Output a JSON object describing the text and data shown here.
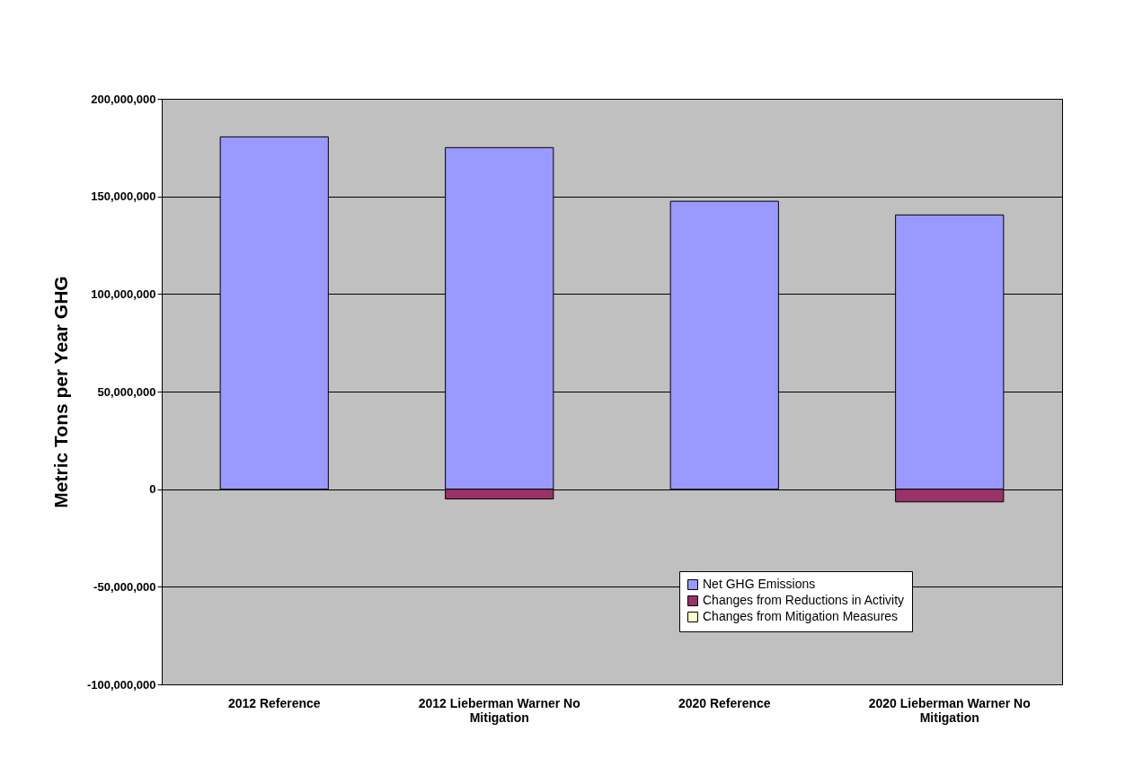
{
  "chart_data": {
    "type": "bar",
    "stacked": true,
    "ylabel": "Metric Tons per Year GHG",
    "categories": [
      "2012 Reference",
      "2012 Lieberman Warner No Mitigation",
      "2020 Reference",
      "2020 Lieberman Warner No Mitigation"
    ],
    "series": [
      {
        "name": "Net GHG Emissions",
        "color": "#9999ff",
        "values": [
          180500000,
          175000000,
          147500000,
          140500000
        ]
      },
      {
        "name": "Changes from Reductions in Activity",
        "color": "#993366",
        "values": [
          0,
          -5000000,
          0,
          -6500000
        ]
      },
      {
        "name": "Changes from Mitigation Measures",
        "color": "#ffffcc",
        "values": [
          0,
          0,
          0,
          0
        ]
      }
    ],
    "ylim": [
      -100000000,
      200000000
    ],
    "yticks": [
      {
        "value": -100000000,
        "label": "-100,000,000"
      },
      {
        "value": -50000000,
        "label": "-50,000,000"
      },
      0,
      {
        "value": 50000000,
        "label": "50,000,000"
      },
      {
        "value": 100000000,
        "label": "100,000,000"
      },
      {
        "value": 150000000,
        "label": "150,000,000"
      },
      {
        "value": 200000000,
        "label": "200,000,000"
      }
    ],
    "grid": "y",
    "legend": "bottom right"
  }
}
